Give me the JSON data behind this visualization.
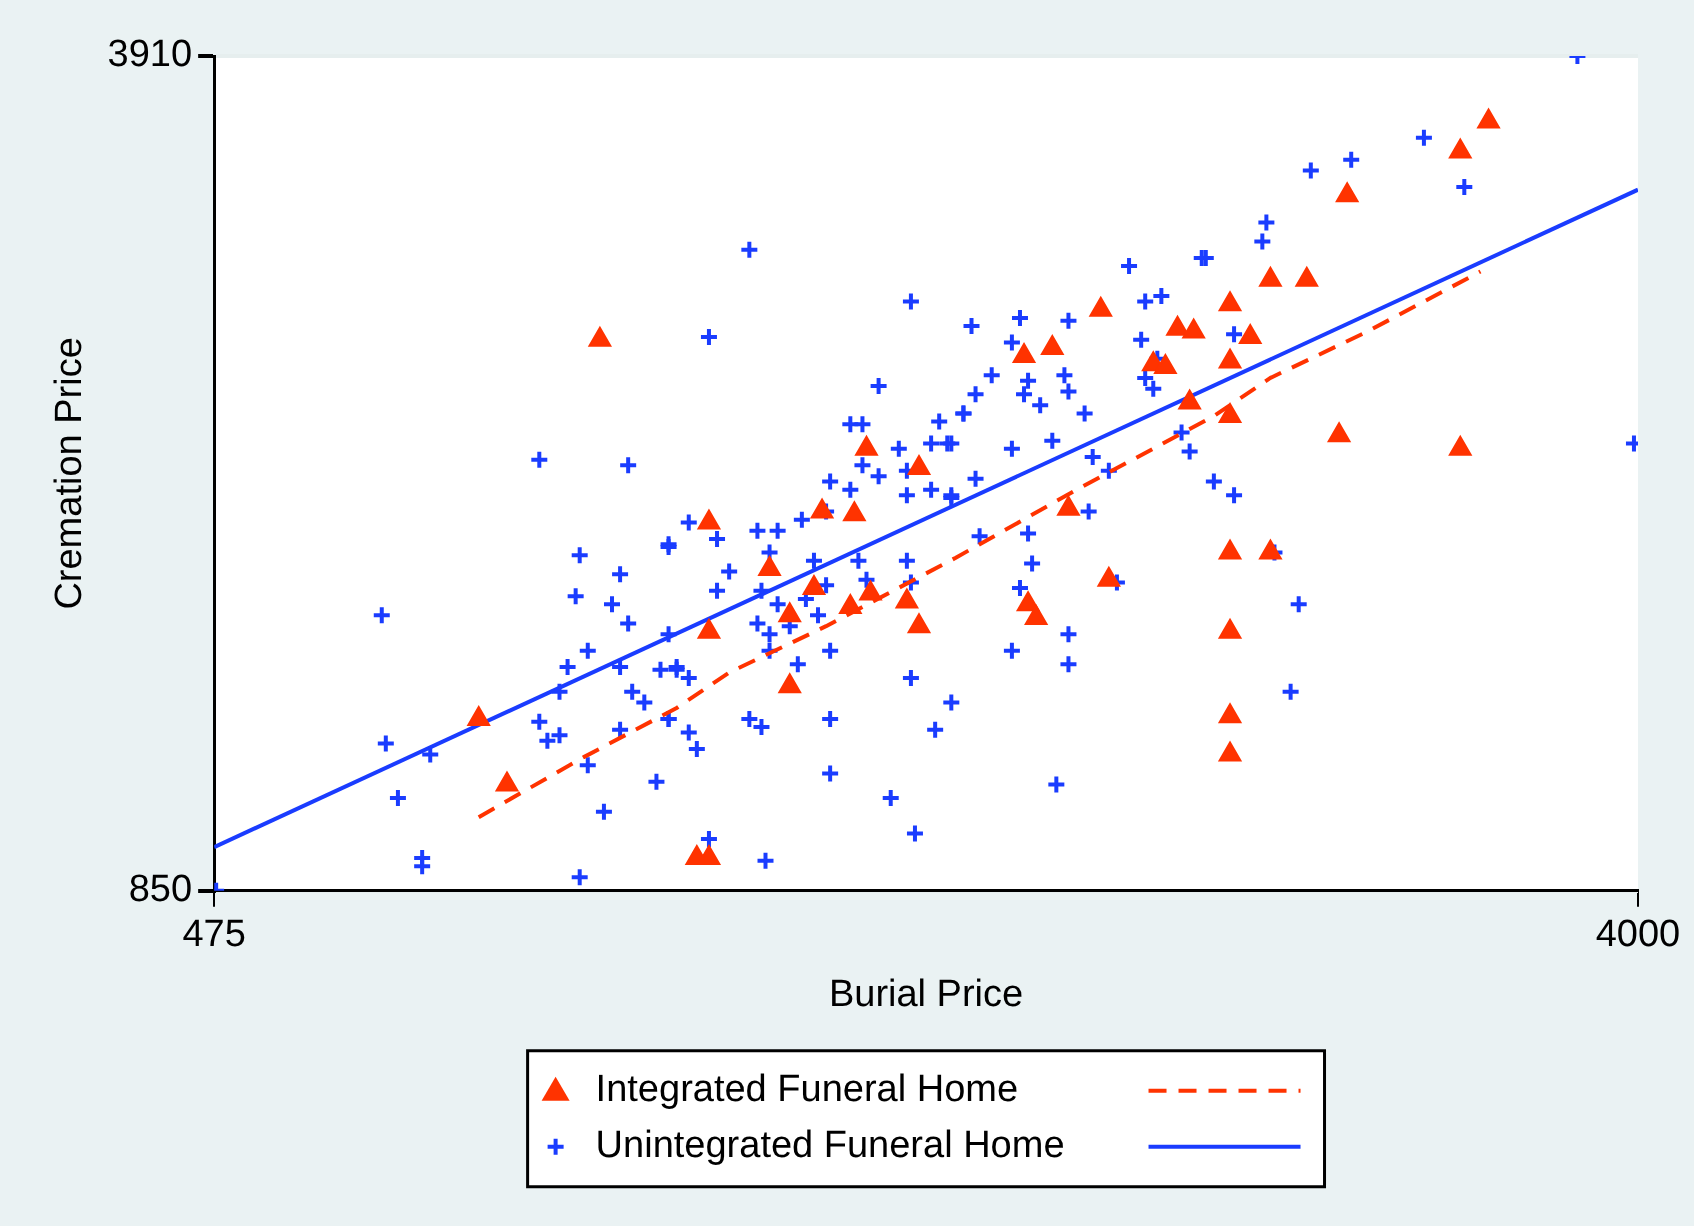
{
  "chart_data": {
    "type": "scatter",
    "xlabel": "Burial Price",
    "ylabel": "Cremation Price",
    "xlim": [
      475,
      4000
    ],
    "ylim": [
      850,
      3910
    ],
    "xticks": [
      475,
      4000
    ],
    "yticks": [
      850,
      3910
    ],
    "grid": "y",
    "legend": "bottom",
    "series": [
      {
        "name": "Integrated Funeral Home",
        "type": "scatter",
        "marker": "triangle",
        "color": "#ff3300",
        "x": [
          1430,
          1130,
          1200,
          1700,
          1850,
          1700,
          2090,
          2220,
          1980,
          2060,
          1960,
          1900,
          1900,
          2050,
          2100,
          2190,
          2220,
          1670,
          1700,
          2670,
          2480,
          2550,
          2860,
          2900,
          2800,
          2830,
          2890,
          2590,
          2690,
          2490,
          2510,
          3630,
          3560,
          3280,
          3090,
          3180,
          2990,
          3040,
          2990,
          2990,
          3260,
          3560,
          2990,
          3090,
          2990,
          2990,
          2990
        ],
        "values": [
          2870,
          1480,
          1240,
          2200,
          2030,
          1800,
          2470,
          2400,
          2240,
          2230,
          1960,
          1860,
          1600,
          1890,
          1940,
          1910,
          1820,
          970,
          970,
          2980,
          2810,
          2840,
          2910,
          2900,
          2780,
          2770,
          2640,
          2250,
          1990,
          1900,
          1850,
          3670,
          3560,
          3400,
          3090,
          3090,
          3000,
          2880,
          2790,
          2590,
          2520,
          2470,
          2090,
          2090,
          1800,
          1490,
          1350
        ]
      },
      {
        "type": "line",
        "line_style": "dashed",
        "color": "#ff3300",
        "x": [
          1130,
          1390,
          1620,
          1750,
          1990,
          2310,
          2610,
          2950,
          3090,
          3330,
          3610
        ],
        "values": [
          1120,
          1340,
          1520,
          1650,
          1820,
          2070,
          2320,
          2590,
          2730,
          2900,
          3120
        ]
      },
      {
        "name": "Unintegrated Funeral Home",
        "type": "scatter",
        "marker": "cross",
        "color": "#1a3cff",
        "x": [
          480,
          890,
          900,
          930,
          1010,
          990,
          990,
          1280,
          1500,
          1380,
          1480,
          1370,
          1460,
          1500,
          1400,
          1350,
          1330,
          1280,
          1300,
          1330,
          1400,
          1440,
          1380,
          1570,
          1600,
          1600,
          1480,
          1580,
          1620,
          1510,
          1540,
          1600,
          1480,
          1800,
          1700,
          2200,
          2120,
          2050,
          2080,
          2270,
          2250,
          2290,
          2170,
          2080,
          2120,
          2190,
          2000,
          2050,
          1990,
          1930,
          2190,
          2250,
          2300,
          1650,
          1720,
          1820,
          1870,
          1850,
          1960,
          2070,
          2190,
          1750,
          1720,
          1830,
          1600,
          1990,
          2090,
          2200,
          1870,
          1940,
          1970,
          1820,
          1900,
          1850,
          1850,
          2000,
          1920,
          1620,
          1650,
          1600,
          1800,
          1830,
          1650,
          1670,
          2000,
          2200,
          2300,
          2260,
          2000,
          2150,
          2210,
          1700,
          1840,
          2330,
          2740,
          2920,
          2350,
          2470,
          2590,
          2780,
          2820,
          2450,
          2400,
          2490,
          2360,
          2480,
          2580,
          2590,
          2520,
          2330,
          2630,
          2770,
          2810,
          2780,
          2800,
          2300,
          2450,
          2550,
          2650,
          2690,
          2870,
          2890,
          2950,
          2360,
          2300,
          2640,
          2490,
          2370,
          2500,
          2470,
          2710,
          2590,
          2590,
          2450,
          2560,
          3850,
          3470,
          3290,
          3190,
          3570,
          3080,
          3070,
          2930,
          3000,
          3990,
          3000,
          3100,
          3160,
          3140
        ],
        "values": [
          850,
          1860,
          1390,
          1190,
          1350,
          970,
          940,
          2430,
          2410,
          2080,
          2010,
          1930,
          1900,
          1830,
          1730,
          1670,
          1580,
          1470,
          1400,
          1420,
          1310,
          1140,
          900,
          1250,
          2120,
          1790,
          1670,
          1660,
          1660,
          1580,
          1540,
          1480,
          1440,
          3200,
          2880,
          3010,
          2700,
          2560,
          2560,
          2570,
          2490,
          2490,
          2470,
          2410,
          2370,
          2390,
          2350,
          2320,
          2240,
          2210,
          2300,
          2320,
          2300,
          2200,
          2140,
          2170,
          2170,
          2090,
          2060,
          2060,
          2060,
          2020,
          1950,
          1950,
          2110,
          1970,
          1990,
          1980,
          1900,
          1920,
          1860,
          1830,
          1820,
          1790,
          1730,
          1730,
          1680,
          1670,
          1630,
          1480,
          1480,
          1450,
          1430,
          1370,
          1480,
          1630,
          1540,
          1440,
          1280,
          1190,
          1060,
          1040,
          960,
          2600,
          3140,
          3170,
          2920,
          2950,
          2940,
          3010,
          3030,
          2860,
          2740,
          2720,
          2670,
          2670,
          2740,
          2680,
          2630,
          2600,
          2600,
          2870,
          2800,
          2730,
          2690,
          2490,
          2470,
          2500,
          2440,
          2390,
          2530,
          2460,
          2350,
          2360,
          2290,
          2240,
          2160,
          2150,
          2050,
          1960,
          1980,
          1790,
          1680,
          1730,
          1240,
          3910,
          3610,
          3530,
          3490,
          3430,
          3300,
          3230,
          3170,
          2890,
          2490,
          2300,
          2090,
          1900,
          1580
        ]
      },
      {
        "type": "line",
        "line_style": "solid",
        "color": "#1a3cff",
        "x": [
          475,
          4000
        ],
        "values": [
          1010,
          3420
        ]
      }
    ]
  }
}
